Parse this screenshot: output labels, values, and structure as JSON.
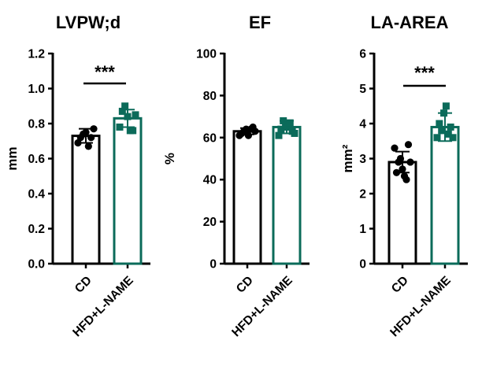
{
  "colors": {
    "cd": "#000000",
    "hfd": "#0b6b5a"
  },
  "chart_data": [
    {
      "type": "bar",
      "title": "LVPW;d",
      "ylabel": "mm",
      "ylim": [
        0,
        1.2
      ],
      "yticks": [
        "0.0",
        "0.2",
        "0.4",
        "0.6",
        "0.8",
        "1.0",
        "1.2"
      ],
      "categories": [
        "CD",
        "HFD+L-NAME"
      ],
      "values": [
        0.73,
        0.83
      ],
      "errors": [
        0.04,
        0.05
      ],
      "points": [
        [
          0.69,
          0.72,
          0.74,
          0.75,
          0.67,
          0.72,
          0.77
        ],
        [
          0.78,
          0.87,
          0.9,
          0.84,
          0.76,
          0.76,
          0.85
        ]
      ],
      "significance": "***"
    },
    {
      "type": "bar",
      "title": "EF",
      "ylabel": "%",
      "ylim": [
        0,
        100
      ],
      "yticks": [
        "0",
        "20",
        "40",
        "60",
        "80",
        "100"
      ],
      "categories": [
        "CD",
        "HFD+L-NAME"
      ],
      "values": [
        63,
        65
      ],
      "errors": [
        1.5,
        3
      ],
      "points": [
        [
          61,
          62,
          63,
          64,
          61,
          64,
          65,
          63
        ],
        [
          61,
          64,
          68,
          66,
          65,
          67,
          63,
          62
        ]
      ],
      "significance": ""
    },
    {
      "type": "bar",
      "title": "LA-AREA",
      "ylabel": "mm²",
      "ylim": [
        0,
        6
      ],
      "yticks": [
        "0",
        "1",
        "2",
        "3",
        "4",
        "5",
        "6"
      ],
      "categories": [
        "CD",
        "HFD+L-NAME"
      ],
      "values": [
        2.9,
        3.9
      ],
      "errors": [
        0.3,
        0.4
      ],
      "points": [
        [
          3.3,
          2.6,
          2.9,
          3.0,
          2.7,
          2.5,
          2.4,
          3.4,
          2.9
        ],
        [
          3.6,
          4.0,
          3.8,
          4.3,
          4.5,
          3.7,
          3.9,
          3.6
        ]
      ],
      "significance": "***"
    }
  ]
}
